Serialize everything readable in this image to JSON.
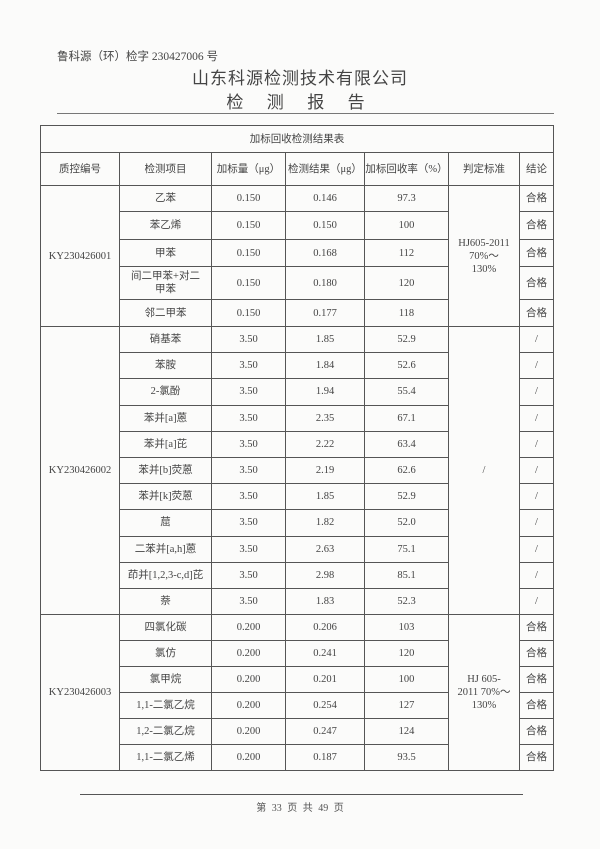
{
  "header": {
    "report_number": "鲁科源（环）检字 230427006 号",
    "company": "山东科源检测技术有限公司",
    "report_title": "检 测 报 告"
  },
  "table": {
    "title": "加标回收检测结果表",
    "columns": [
      "质控编号",
      "检测项目",
      "加标量（μg）",
      "检测结果（μg）",
      "加标回收率（%）",
      "判定标准",
      "结论"
    ],
    "groups": [
      {
        "id": "KY230426001",
        "standard": "HJ605-2011 70%～130%",
        "rows": [
          {
            "item": "乙苯",
            "spike": "0.150",
            "result": "0.146",
            "recovery": "97.3",
            "conclusion": "合格"
          },
          {
            "item": "苯乙烯",
            "spike": "0.150",
            "result": "0.150",
            "recovery": "100",
            "conclusion": "合格"
          },
          {
            "item": "甲苯",
            "spike": "0.150",
            "result": "0.168",
            "recovery": "112",
            "conclusion": "合格"
          },
          {
            "item": "间二甲苯+对二甲苯",
            "spike": "0.150",
            "result": "0.180",
            "recovery": "120",
            "conclusion": "合格"
          },
          {
            "item": "邻二甲苯",
            "spike": "0.150",
            "result": "0.177",
            "recovery": "118",
            "conclusion": "合格"
          }
        ]
      },
      {
        "id": "KY230426002",
        "standard": "/",
        "rows": [
          {
            "item": "硝基苯",
            "spike": "3.50",
            "result": "1.85",
            "recovery": "52.9",
            "conclusion": "/"
          },
          {
            "item": "苯胺",
            "spike": "3.50",
            "result": "1.84",
            "recovery": "52.6",
            "conclusion": "/"
          },
          {
            "item": "2-氯酚",
            "spike": "3.50",
            "result": "1.94",
            "recovery": "55.4",
            "conclusion": "/"
          },
          {
            "item": "苯并[a]蒽",
            "spike": "3.50",
            "result": "2.35",
            "recovery": "67.1",
            "conclusion": "/"
          },
          {
            "item": "苯并[a]芘",
            "spike": "3.50",
            "result": "2.22",
            "recovery": "63.4",
            "conclusion": "/"
          },
          {
            "item": "苯并[b]荧蒽",
            "spike": "3.50",
            "result": "2.19",
            "recovery": "62.6",
            "conclusion": "/"
          },
          {
            "item": "苯并[k]荧蒽",
            "spike": "3.50",
            "result": "1.85",
            "recovery": "52.9",
            "conclusion": "/"
          },
          {
            "item": "䓛",
            "spike": "3.50",
            "result": "1.82",
            "recovery": "52.0",
            "conclusion": "/"
          },
          {
            "item": "二苯并[a,h]蒽",
            "spike": "3.50",
            "result": "2.63",
            "recovery": "75.1",
            "conclusion": "/"
          },
          {
            "item": "茚并[1,2,3-c,d]芘",
            "spike": "3.50",
            "result": "2.98",
            "recovery": "85.1",
            "conclusion": "/"
          },
          {
            "item": "萘",
            "spike": "3.50",
            "result": "1.83",
            "recovery": "52.3",
            "conclusion": "/"
          }
        ]
      },
      {
        "id": "KY230426003",
        "standard": "HJ 605-2011 70%～130%",
        "rows": [
          {
            "item": "四氯化碳",
            "spike": "0.200",
            "result": "0.206",
            "recovery": "103",
            "conclusion": "合格"
          },
          {
            "item": "氯仿",
            "spike": "0.200",
            "result": "0.241",
            "recovery": "120",
            "conclusion": "合格"
          },
          {
            "item": "氯甲烷",
            "spike": "0.200",
            "result": "0.201",
            "recovery": "100",
            "conclusion": "合格"
          },
          {
            "item": "1,1-二氯乙烷",
            "spike": "0.200",
            "result": "0.254",
            "recovery": "127",
            "conclusion": "合格"
          },
          {
            "item": "1,2-二氯乙烷",
            "spike": "0.200",
            "result": "0.247",
            "recovery": "124",
            "conclusion": "合格"
          },
          {
            "item": "1,1-二氯乙烯",
            "spike": "0.200",
            "result": "0.187",
            "recovery": "93.5",
            "conclusion": "合格"
          }
        ]
      }
    ]
  },
  "footer": {
    "page": "第 33 页 共 49 页"
  }
}
